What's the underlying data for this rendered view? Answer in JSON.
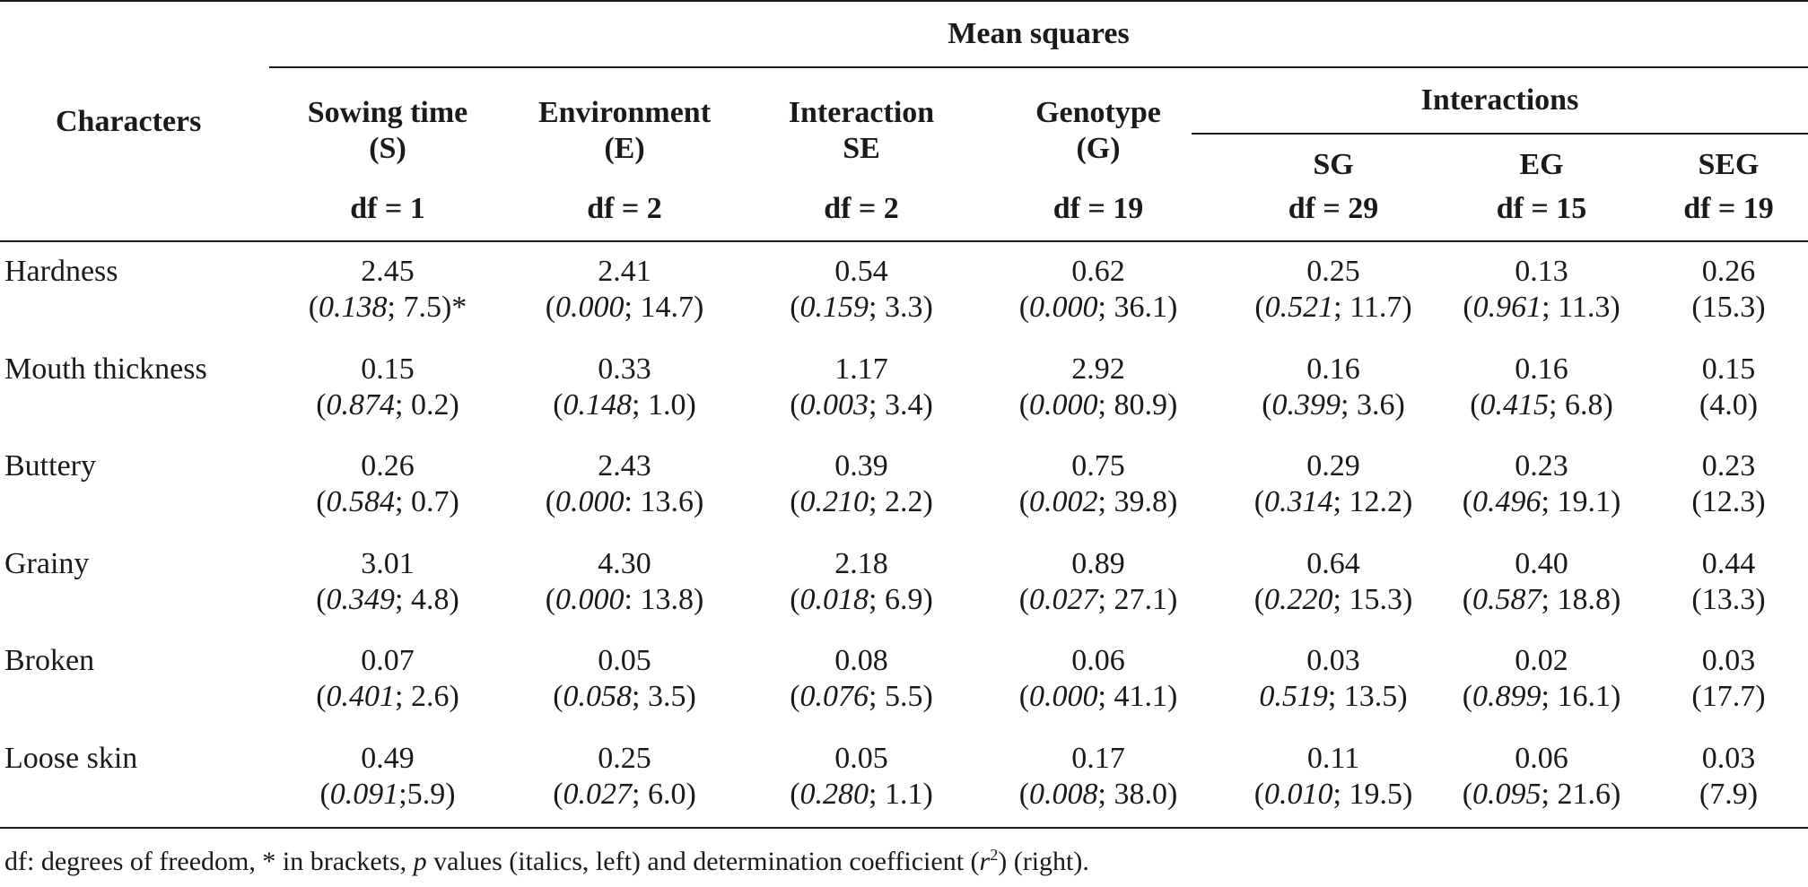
{
  "table": {
    "mean_squares": "Mean squares",
    "characters": "Characters",
    "interactions": "Interactions",
    "columns": [
      {
        "line1": "Sowing time",
        "line2": "(S)",
        "df": "df = 1"
      },
      {
        "line1": "Environment",
        "line2": "(E)",
        "df": "df = 2"
      },
      {
        "line1": "Interaction",
        "line2": "SE",
        "df": "df = 2"
      },
      {
        "line1": "Genotype",
        "line2": "(G)",
        "df": "df = 19"
      },
      {
        "line1": "SG",
        "line2": "",
        "df": "df = 29"
      },
      {
        "line1": "EG",
        "line2": "",
        "df": "df = 15"
      },
      {
        "line1": "SEG",
        "line2": "",
        "df": "df = 19"
      }
    ],
    "rows": [
      {
        "label": "Hardness",
        "cells": [
          {
            "v": "2.45",
            "o": "(",
            "p": "0.138",
            "s": "; 7.5)*"
          },
          {
            "v": "2.41",
            "o": "(",
            "p": "0.000",
            "s": "; 14.7)"
          },
          {
            "v": "0.54",
            "o": "(",
            "p": "0.159",
            "s": "; 3.3)"
          },
          {
            "v": "0.62",
            "o": "(",
            "p": "0.000",
            "s": "; 36.1)"
          },
          {
            "v": "0.25",
            "o": "(",
            "p": "0.521",
            "s": "; 11.7)"
          },
          {
            "v": "0.13",
            "o": "(",
            "p": "0.961",
            "s": "; 11.3)"
          },
          {
            "v": "0.26",
            "o": "",
            "p": "",
            "s": "(15.3)"
          }
        ]
      },
      {
        "label": "Mouth thickness",
        "cells": [
          {
            "v": "0.15",
            "o": "(",
            "p": "0.874",
            "s": "; 0.2)"
          },
          {
            "v": "0.33",
            "o": "(",
            "p": "0.148",
            "s": "; 1.0)"
          },
          {
            "v": "1.17",
            "o": "(",
            "p": "0.003",
            "s": "; 3.4)"
          },
          {
            "v": "2.92",
            "o": "(",
            "p": "0.000",
            "s": "; 80.9)"
          },
          {
            "v": "0.16",
            "o": "(",
            "p": "0.399",
            "s": "; 3.6)"
          },
          {
            "v": "0.16",
            "o": "(",
            "p": "0.415",
            "s": "; 6.8)"
          },
          {
            "v": "0.15",
            "o": "",
            "p": "",
            "s": "(4.0)"
          }
        ]
      },
      {
        "label": "Buttery",
        "cells": [
          {
            "v": "0.26",
            "o": "(",
            "p": "0.584",
            "s": "; 0.7)"
          },
          {
            "v": "2.43",
            "o": "(",
            "p": "0.000",
            "s": ": 13.6)"
          },
          {
            "v": "0.39",
            "o": "(",
            "p": "0.210",
            "s": "; 2.2)"
          },
          {
            "v": "0.75",
            "o": "(",
            "p": "0.002",
            "s": "; 39.8)"
          },
          {
            "v": "0.29",
            "o": "(",
            "p": "0.314",
            "s": "; 12.2)"
          },
          {
            "v": "0.23",
            "o": "(",
            "p": "0.496",
            "s": "; 19.1)"
          },
          {
            "v": "0.23",
            "o": "",
            "p": "",
            "s": "(12.3)"
          }
        ]
      },
      {
        "label": "Grainy",
        "cells": [
          {
            "v": "3.01",
            "o": "(",
            "p": "0.349",
            "s": "; 4.8)"
          },
          {
            "v": "4.30",
            "o": "(",
            "p": "0.000",
            "s": ": 13.8)"
          },
          {
            "v": "2.18",
            "o": "(",
            "p": "0.018",
            "s": "; 6.9)"
          },
          {
            "v": "0.89",
            "o": "(",
            "p": "0.027",
            "s": "; 27.1)"
          },
          {
            "v": "0.64",
            "o": "(",
            "p": "0.220",
            "s": "; 15.3)"
          },
          {
            "v": "0.40",
            "o": "(",
            "p": "0.587",
            "s": "; 18.8)"
          },
          {
            "v": "0.44",
            "o": "",
            "p": "",
            "s": "(13.3)"
          }
        ]
      },
      {
        "label": "Broken",
        "cells": [
          {
            "v": "0.07",
            "o": "(",
            "p": "0.401",
            "s": "; 2.6)"
          },
          {
            "v": "0.05",
            "o": "(",
            "p": "0.058",
            "s": "; 3.5)"
          },
          {
            "v": "0.08",
            "o": "(",
            "p": "0.076",
            "s": "; 5.5)"
          },
          {
            "v": "0.06",
            "o": "(",
            "p": "0.000",
            "s": "; 41.1)"
          },
          {
            "v": "0.03",
            "o": "",
            "p": "0.519",
            "s": "; 13.5)"
          },
          {
            "v": "0.02",
            "o": "(",
            "p": "0.899",
            "s": "; 16.1)"
          },
          {
            "v": "0.03",
            "o": "",
            "p": "",
            "s": "(17.7)"
          }
        ]
      },
      {
        "label": "Loose skin",
        "cells": [
          {
            "v": "0.49",
            "o": "(",
            "p": "0.091",
            "s": ";5.9)"
          },
          {
            "v": "0.25",
            "o": "(",
            "p": "0.027",
            "s": "; 6.0)"
          },
          {
            "v": "0.05",
            "o": "(",
            "p": "0.280",
            "s": "; 1.1)"
          },
          {
            "v": "0.17",
            "o": "(",
            "p": "0.008",
            "s": "; 38.0)"
          },
          {
            "v": "0.11",
            "o": "(",
            "p": "0.010",
            "s": "; 19.5)"
          },
          {
            "v": "0.06",
            "o": "(",
            "p": "0.095",
            "s": "; 21.6)"
          },
          {
            "v": "0.03",
            "o": "",
            "p": "",
            "s": "(7.9)"
          }
        ]
      }
    ]
  },
  "footnote": {
    "a": "df: degrees of freedom, * in brackets, ",
    "p": "p",
    "b": " values (italics, left) and determination coefficient (",
    "r": "r",
    "sup": "2",
    "c": ") (right)."
  }
}
